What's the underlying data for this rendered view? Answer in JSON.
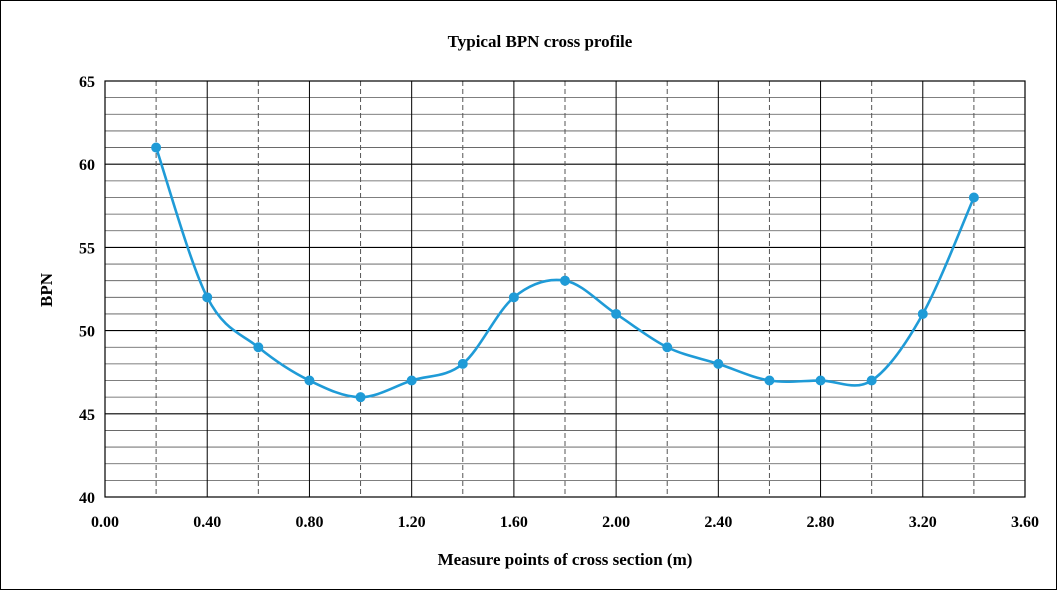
{
  "chart_data": {
    "type": "line",
    "title": "Typical BPN cross profile",
    "xlabel": "Measure points of cross section (m)",
    "ylabel": "BPN",
    "xlim": [
      0.0,
      3.6
    ],
    "ylim": [
      40,
      65
    ],
    "x_ticks": [
      "0.00",
      "0.40",
      "0.80",
      "1.20",
      "1.60",
      "2.00",
      "2.40",
      "2.80",
      "3.20",
      "3.60"
    ],
    "y_ticks": [
      "40",
      "45",
      "50",
      "55",
      "60",
      "65"
    ],
    "grid": true,
    "smooth": true,
    "series": [
      {
        "color": "#1f9bd7",
        "x": [
          0.2,
          0.4,
          0.6,
          0.8,
          1.0,
          1.2,
          1.4,
          1.6,
          1.8,
          2.0,
          2.2,
          2.4,
          2.6,
          2.8,
          3.0,
          3.2,
          3.4
        ],
        "y": [
          61,
          52,
          49,
          47,
          46,
          47,
          48,
          52,
          53,
          51,
          49,
          48,
          47,
          47,
          47,
          51,
          58
        ]
      }
    ]
  }
}
